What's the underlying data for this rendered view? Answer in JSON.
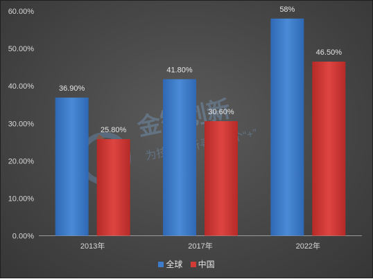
{
  "chart_data": {
    "type": "bar",
    "categories": [
      "2013年",
      "2017年",
      "2022年"
    ],
    "series": [
      {
        "name": "全球",
        "values": [
          36.9,
          41.8,
          58
        ],
        "labels": [
          "36.90%",
          "41.80%",
          "58%"
        ],
        "color": "#3e7cc9"
      },
      {
        "name": "中国",
        "values": [
          25.8,
          30.6,
          46.5
        ],
        "labels": [
          "25.80%",
          "30.60%",
          "46.50%"
        ],
        "color": "#d23a36"
      }
    ],
    "y_ticks": [
      "0.00%",
      "10.00%",
      "20.00%",
      "30.00%",
      "40.00%",
      "50.00%",
      "60.00%"
    ],
    "ylim": [
      0,
      60
    ],
    "grid": false,
    "legend_position": "bottom"
  },
  "watermark": {
    "title": "金智创新",
    "subtitle": "为技术创新寻找一个“+”"
  }
}
